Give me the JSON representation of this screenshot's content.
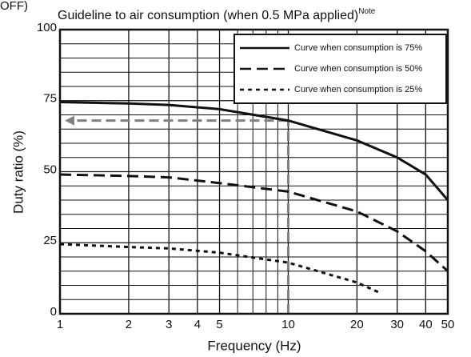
{
  "chart_data": {
    "type": "line",
    "title": "Guideline to air consumption (when 0.5 MPa applied)",
    "title_note": "Note",
    "corner_text": "OFF)",
    "xlabel": "Frequency (Hz)",
    "ylabel": "Duty ratio (%)",
    "xscale": "log",
    "xlim": [
      1,
      50
    ],
    "ylim": [
      0,
      100
    ],
    "xticks": [
      1,
      2,
      3,
      4,
      5,
      10,
      20,
      30,
      40,
      50
    ],
    "x_minor_ticks": [
      6,
      7,
      8,
      9
    ],
    "yticks": [
      0,
      25,
      50,
      75,
      100
    ],
    "y_minor_ticks": [
      5,
      10,
      15,
      20,
      30,
      35,
      40,
      45,
      55,
      60,
      65,
      70,
      80,
      85,
      90,
      95
    ],
    "grid": true,
    "legend": "upper right",
    "series": [
      {
        "name": "Curve when consumption is 75%",
        "color": "#111111",
        "dash": "solid",
        "x": [
          1,
          2,
          3,
          5,
          10,
          20,
          30,
          40,
          50
        ],
        "values": [
          74.5,
          74,
          73.5,
          72,
          68,
          61,
          55,
          49,
          40
        ]
      },
      {
        "name": "Curve when consumption is 50%",
        "color": "#111111",
        "dash": "dashed",
        "x": [
          1,
          2,
          3,
          5,
          10,
          20,
          30,
          40,
          50
        ],
        "values": [
          49,
          48.5,
          48,
          46,
          43,
          36,
          29,
          22,
          15
        ]
      },
      {
        "name": "Curve when consumption is 25%",
        "color": "#111111",
        "dash": "dotted",
        "x": [
          1,
          2,
          3,
          5,
          10,
          20,
          25
        ],
        "values": [
          24.5,
          23.5,
          23,
          21.5,
          18,
          11,
          7.5
        ]
      }
    ],
    "reference": {
      "x": 10,
      "y": 68,
      "color": "#808080"
    }
  }
}
